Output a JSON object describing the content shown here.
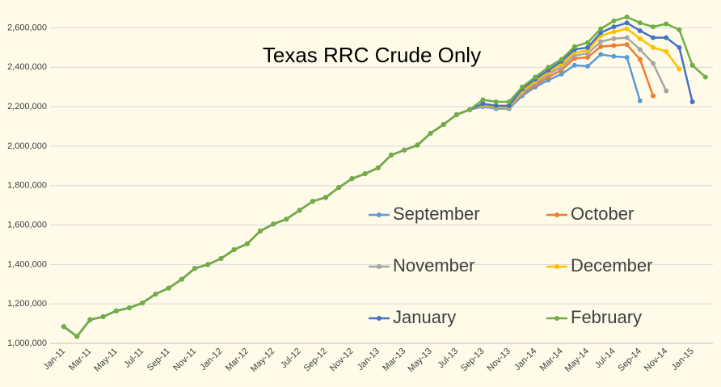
{
  "chart_data": {
    "type": "line",
    "title": "Texas RRC Crude Only",
    "categories": [
      "Jan-11",
      null,
      "Mar-11",
      null,
      "May-11",
      null,
      "Jul-11",
      null,
      "Sep-11",
      null,
      "Nov-11",
      null,
      "Jan-12",
      null,
      "Mar-12",
      null,
      "May-12",
      null,
      "Jul-12",
      null,
      "Sep-12",
      null,
      "Nov-12",
      null,
      "Jan-13",
      null,
      "Mar-13",
      null,
      "May-13",
      null,
      "Jul-13",
      null,
      "Sep-13",
      null,
      "Nov-13",
      null,
      "Jan-14",
      null,
      "Mar-14",
      null,
      "May-14",
      null,
      "Jul-14",
      null,
      "Sep-14",
      null,
      "Nov-14",
      null,
      "Jan-15",
      null
    ],
    "ylim": [
      1000000,
      2700000
    ],
    "yticks": [
      {
        "value": 1000000,
        "label": "1,000,000"
      },
      {
        "value": 1200000,
        "label": "1,200,000"
      },
      {
        "value": 1400000,
        "label": "1,400,000"
      },
      {
        "value": 1600000,
        "label": "1,600,000"
      },
      {
        "value": 1800000,
        "label": "1,800,000"
      },
      {
        "value": 2000000,
        "label": "2,000,000"
      },
      {
        "value": 2200000,
        "label": "2,200,000"
      },
      {
        "value": 2400000,
        "label": "2,400,000"
      },
      {
        "value": 2600000,
        "label": "2,600,000"
      }
    ],
    "grid": true,
    "legend": "inside",
    "series": [
      {
        "name": "September",
        "color": "#5b9bd5",
        "values": [
          1085000,
          1035000,
          1120000,
          1135000,
          1165000,
          1180000,
          1205000,
          1250000,
          1280000,
          1325000,
          1380000,
          1400000,
          1430000,
          1475000,
          1505000,
          1570000,
          1605000,
          1630000,
          1675000,
          1720000,
          1740000,
          1790000,
          1835000,
          1860000,
          1890000,
          1955000,
          1980000,
          2005000,
          2065000,
          2110000,
          2160000,
          2185000,
          2200000,
          2190000,
          2190000,
          2255000,
          2300000,
          2335000,
          2365000,
          2410000,
          2405000,
          2465000,
          2455000,
          2450000,
          2230000,
          null,
          null,
          null,
          null,
          null
        ]
      },
      {
        "name": "October",
        "color": "#ed7d31",
        "values": [
          1085000,
          1035000,
          1120000,
          1135000,
          1165000,
          1180000,
          1205000,
          1250000,
          1280000,
          1325000,
          1380000,
          1400000,
          1430000,
          1475000,
          1505000,
          1570000,
          1605000,
          1630000,
          1675000,
          1720000,
          1740000,
          1790000,
          1835000,
          1860000,
          1890000,
          1955000,
          1980000,
          2005000,
          2065000,
          2110000,
          2160000,
          2185000,
          2205000,
          2195000,
          2195000,
          2265000,
          2310000,
          2350000,
          2385000,
          2445000,
          2450000,
          2505000,
          2510000,
          2515000,
          2440000,
          2255000,
          null,
          null,
          null,
          null
        ]
      },
      {
        "name": "November",
        "color": "#a5a5a5",
        "values": [
          1085000,
          1035000,
          1120000,
          1135000,
          1165000,
          1180000,
          1205000,
          1250000,
          1280000,
          1325000,
          1380000,
          1400000,
          1430000,
          1475000,
          1505000,
          1570000,
          1605000,
          1630000,
          1675000,
          1720000,
          1740000,
          1790000,
          1835000,
          1860000,
          1890000,
          1955000,
          1980000,
          2005000,
          2065000,
          2110000,
          2160000,
          2185000,
          2205000,
          2195000,
          2195000,
          2270000,
          2320000,
          2365000,
          2400000,
          2460000,
          2470000,
          2530000,
          2545000,
          2550000,
          2490000,
          2420000,
          2280000,
          null,
          null,
          null
        ]
      },
      {
        "name": "December",
        "color": "#ffc000",
        "values": [
          1085000,
          1035000,
          1120000,
          1135000,
          1165000,
          1180000,
          1205000,
          1250000,
          1280000,
          1325000,
          1380000,
          1400000,
          1430000,
          1475000,
          1505000,
          1570000,
          1605000,
          1630000,
          1675000,
          1720000,
          1740000,
          1790000,
          1835000,
          1860000,
          1890000,
          1955000,
          1980000,
          2005000,
          2065000,
          2110000,
          2160000,
          2185000,
          2210000,
          2200000,
          2200000,
          2280000,
          2330000,
          2375000,
          2415000,
          2475000,
          2485000,
          2560000,
          2580000,
          2595000,
          2545000,
          2500000,
          2480000,
          2390000,
          null,
          null
        ]
      },
      {
        "name": "January",
        "color": "#4472c4",
        "values": [
          1085000,
          1035000,
          1120000,
          1135000,
          1165000,
          1180000,
          1205000,
          1250000,
          1280000,
          1325000,
          1380000,
          1400000,
          1430000,
          1475000,
          1505000,
          1570000,
          1605000,
          1630000,
          1675000,
          1720000,
          1740000,
          1790000,
          1835000,
          1860000,
          1890000,
          1955000,
          1980000,
          2005000,
          2065000,
          2110000,
          2160000,
          2185000,
          2215000,
          2205000,
          2205000,
          2290000,
          2340000,
          2385000,
          2430000,
          2490000,
          2500000,
          2575000,
          2605000,
          2625000,
          2585000,
          2550000,
          2550000,
          2500000,
          2225000,
          null
        ]
      },
      {
        "name": "February",
        "color": "#70ad47",
        "values": [
          1085000,
          1035000,
          1120000,
          1135000,
          1165000,
          1180000,
          1205000,
          1250000,
          1280000,
          1325000,
          1380000,
          1400000,
          1430000,
          1475000,
          1505000,
          1570000,
          1605000,
          1630000,
          1675000,
          1720000,
          1740000,
          1790000,
          1835000,
          1860000,
          1890000,
          1955000,
          1980000,
          2005000,
          2065000,
          2110000,
          2160000,
          2185000,
          2235000,
          2225000,
          2225000,
          2300000,
          2350000,
          2400000,
          2440000,
          2505000,
          2525000,
          2595000,
          2635000,
          2655000,
          2625000,
          2605000,
          2620000,
          2590000,
          2410000,
          2350000
        ]
      }
    ]
  }
}
